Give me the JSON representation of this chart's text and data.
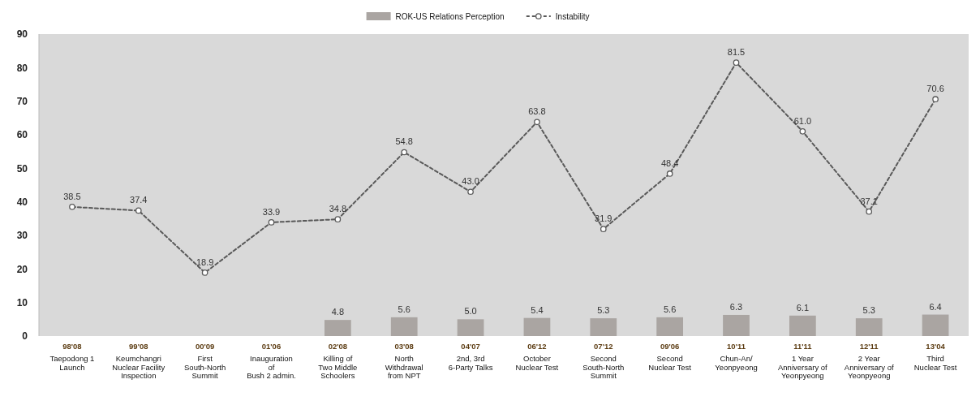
{
  "chart_data": {
    "type": "bar",
    "categories": [
      "98'08\nTaepodong 1\nLaunch",
      "99'08\nKeumchangri\nNuclear Facility\nInspection",
      "00'09\nFirst\nSouth-North\nSummit",
      "01'06\nInauguration\nof\nBush 2 admin.",
      "02'08\nKilling of\nTwo Middle\nSchoolers",
      "03'08\nNorth\nWithdrawal\nfrom NPT",
      "04'07\n2nd, 3rd\n6-Party Talks",
      "06'12\nOctober\nNuclear Test",
      "07'12\nSecond\nSouth-North\nSummit",
      "09'06\nSecond\nNuclear Test",
      "10'11\nChun-An/\nYeonpyeong",
      "11'11\n1 Year\nAnniversary of\nYeonpyeong",
      "12'11\n2 Year\nAnniversary of\nYeonpyeong",
      "13'04\nThird\nNuclear Test"
    ],
    "series": [
      {
        "name": "ROK-US Relations Perception",
        "color": "#aaa5a2",
        "values": [
          null,
          null,
          null,
          null,
          4.8,
          5.6,
          5.0,
          5.4,
          5.3,
          5.6,
          6.3,
          6.1,
          5.3,
          6.4
        ],
        "value_labels": [
          null,
          null,
          null,
          null,
          "4.8",
          "5.6",
          "5.0",
          "5.4",
          "5.3",
          "5.6",
          "6.3",
          "6.1",
          "5.3",
          "6.4"
        ]
      },
      {
        "name": "Instability",
        "type": "line",
        "color": "#595959",
        "marker": "circle",
        "line_style": "dashed",
        "values": [
          38.5,
          37.4,
          18.9,
          33.9,
          34.8,
          54.8,
          43.0,
          63.8,
          31.9,
          48.4,
          81.5,
          61.0,
          37.1,
          70.6
        ],
        "value_labels": [
          "38.5",
          "37.4",
          "18.9",
          "33.9",
          "34.8",
          "54.8",
          "43.0",
          "63.8",
          "31.9",
          "48.4",
          "81.5",
          "61.0",
          "37.1",
          "70.6"
        ]
      }
    ],
    "ylim": [
      0,
      90
    ],
    "yticks": [
      0,
      10,
      20,
      30,
      40,
      50,
      60,
      70,
      80,
      90
    ],
    "grid": false,
    "legend": "top"
  }
}
